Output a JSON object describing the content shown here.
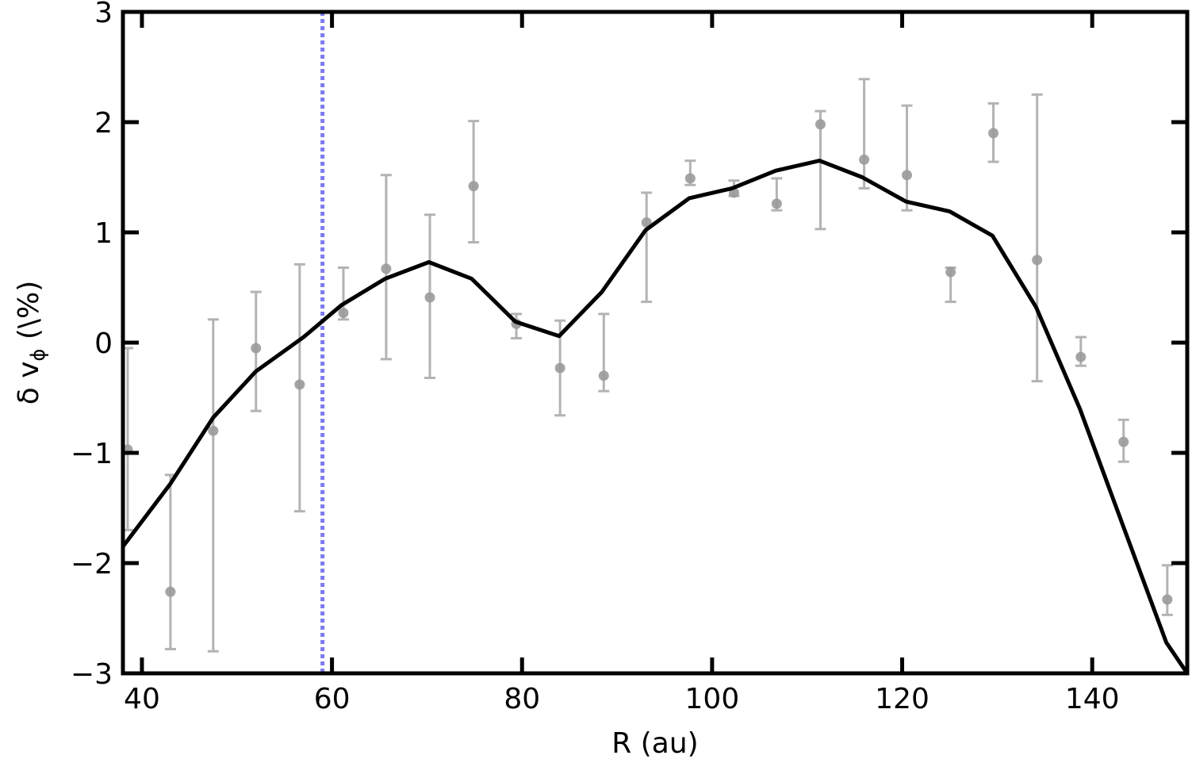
{
  "chart_data": {
    "type": "scatter",
    "xlabel": "R (au)",
    "ylabel_main": "δ v",
    "ylabel_sub": "ϕ",
    "ylabel_unit": " (\\%)",
    "xlim": [
      38,
      150
    ],
    "ylim": [
      -3,
      3
    ],
    "x_ticks": [
      40,
      60,
      80,
      100,
      120,
      140
    ],
    "x_tick_labels": [
      "40",
      "60",
      "80",
      "100",
      "120",
      "140"
    ],
    "y_ticks": [
      -3,
      -2,
      -1,
      0,
      1,
      2,
      3
    ],
    "y_tick_labels": [
      "−3",
      "−2",
      "−1",
      "0",
      "1",
      "2",
      "3"
    ],
    "grid": false,
    "colors": {
      "model_line": "#000000",
      "observations": "#9a9a9a",
      "vertical_line": "#7b7bf0"
    },
    "vertical_line_x": 59,
    "model_curve": {
      "x": [
        38,
        43,
        47.5,
        52,
        57,
        61,
        65.6,
        70.2,
        74.7,
        79.3,
        83.9,
        88.4,
        93,
        97.6,
        102.1,
        106.7,
        111.3,
        115.8,
        120.4,
        125,
        129.5,
        134.1,
        138.7,
        143.2,
        147.8,
        150
      ],
      "y": [
        -1.85,
        -1.28,
        -0.68,
        -0.26,
        0.05,
        0.34,
        0.58,
        0.73,
        0.58,
        0.19,
        0.06,
        0.46,
        1.02,
        1.31,
        1.4,
        1.56,
        1.65,
        1.5,
        1.28,
        1.19,
        0.97,
        0.32,
        -0.6,
        -1.65,
        -2.72,
        -3.0
      ]
    },
    "observations": {
      "x": [
        38.5,
        43,
        47.5,
        52,
        56.6,
        61.2,
        65.7,
        70.3,
        74.9,
        79.4,
        84,
        88.6,
        93.1,
        97.7,
        102.3,
        106.8,
        111.4,
        116,
        120.5,
        125.1,
        129.6,
        134.2,
        138.8,
        143.3,
        147.9
      ],
      "y": [
        -0.97,
        -2.26,
        -0.8,
        -0.05,
        -0.38,
        0.27,
        0.67,
        0.41,
        1.42,
        0.17,
        -0.23,
        -0.3,
        1.09,
        1.49,
        1.36,
        1.26,
        1.98,
        1.66,
        1.52,
        0.64,
        1.9,
        0.75,
        -0.13,
        -0.9,
        -2.33
      ],
      "y_low": [
        -1.7,
        -2.78,
        -2.8,
        -0.62,
        -1.53,
        0.21,
        -0.15,
        -0.32,
        0.91,
        0.04,
        -0.66,
        -0.44,
        0.37,
        1.43,
        1.33,
        1.2,
        1.03,
        1.4,
        1.2,
        0.37,
        1.64,
        -0.35,
        -0.21,
        -1.08,
        -2.47
      ],
      "y_high": [
        -0.05,
        -1.2,
        0.21,
        0.46,
        0.71,
        0.68,
        1.52,
        1.16,
        2.01,
        0.26,
        0.2,
        0.26,
        1.36,
        1.65,
        1.47,
        1.49,
        2.1,
        2.39,
        2.15,
        0.68,
        2.17,
        2.25,
        0.05,
        -0.7,
        -2.02
      ]
    }
  }
}
